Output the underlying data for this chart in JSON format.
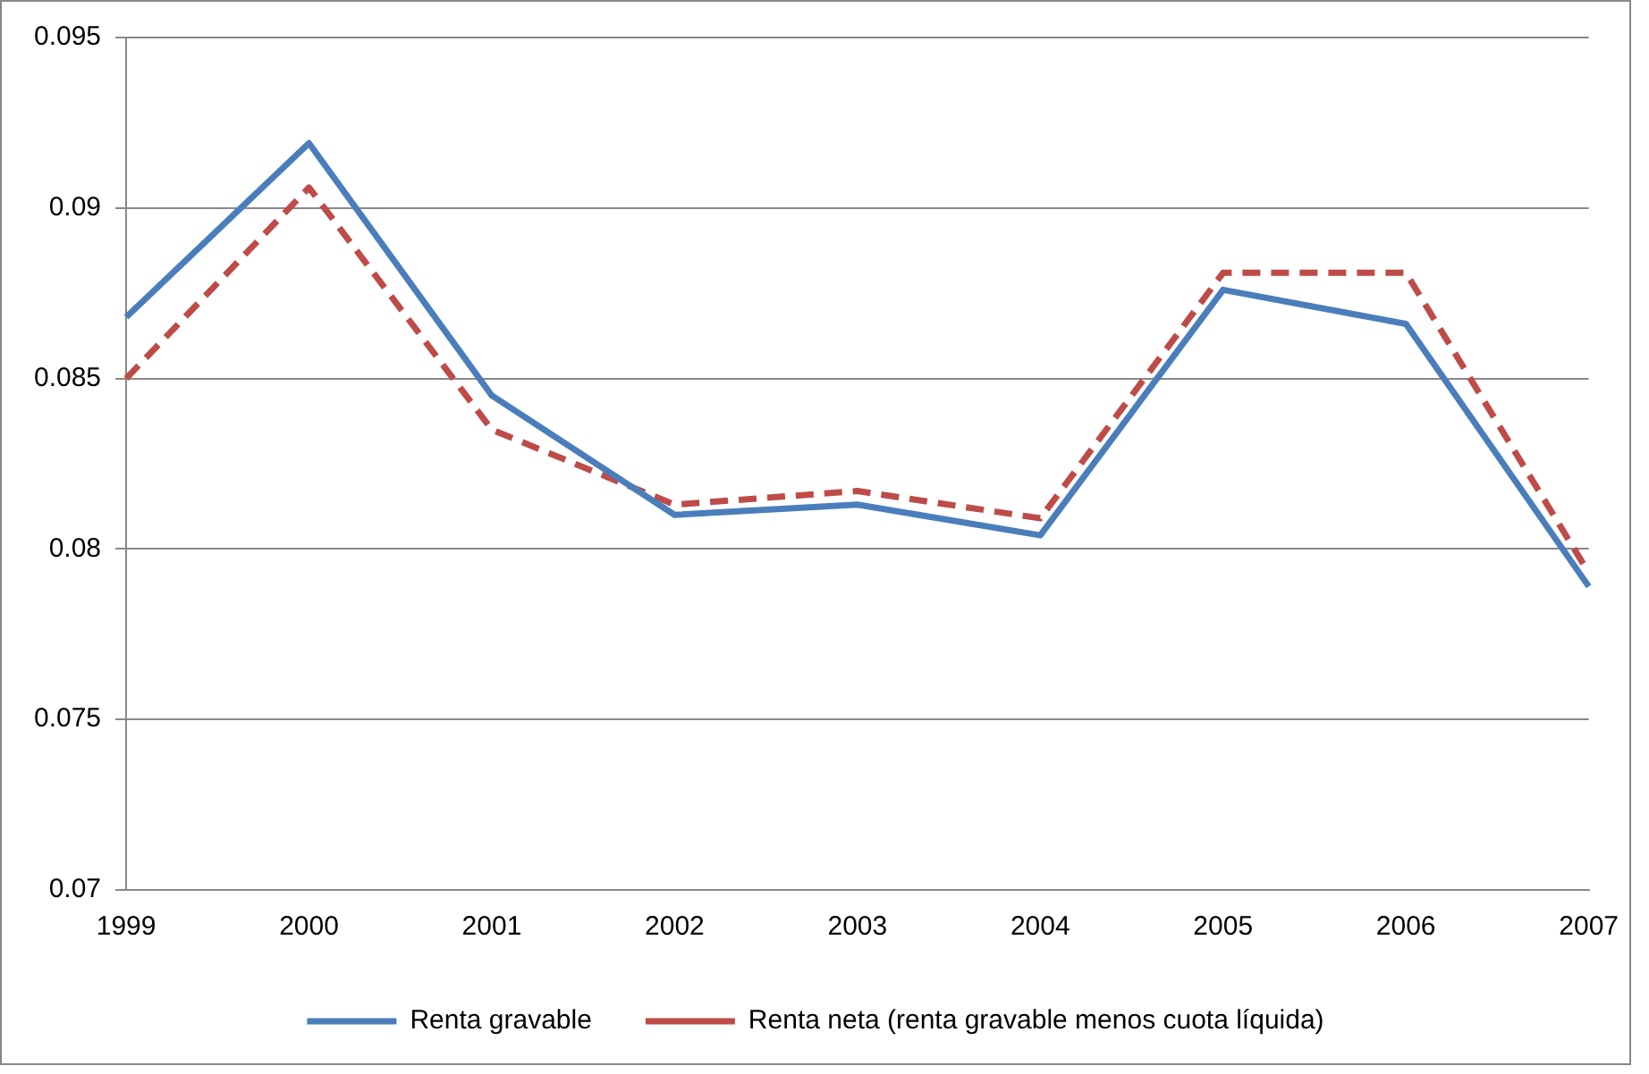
{
  "chart_data": {
    "type": "line",
    "categories": [
      "1999",
      "2000",
      "2001",
      "2002",
      "2003",
      "2004",
      "2005",
      "2006",
      "2007"
    ],
    "series": [
      {
        "name": "Renta gravable",
        "color": "#4a7ebb",
        "line_style": "solid",
        "values": [
          0.0868,
          0.0919,
          0.0845,
          0.081,
          0.0813,
          0.0804,
          0.0876,
          0.0866,
          0.0789
        ]
      },
      {
        "name": "Renta neta (renta gravable menos cuota líquida)",
        "color": "#be4b48",
        "line_style": "dashed",
        "values": [
          0.085,
          0.0906,
          0.0835,
          0.0813,
          0.0817,
          0.0809,
          0.0881,
          0.0881,
          0.0793
        ]
      }
    ],
    "ylim": [
      0.07,
      0.095
    ],
    "yticks": [
      0.07,
      0.075,
      0.08,
      0.085,
      0.09,
      0.095
    ],
    "grid": "y",
    "legend": "bottom",
    "marker": "none"
  }
}
